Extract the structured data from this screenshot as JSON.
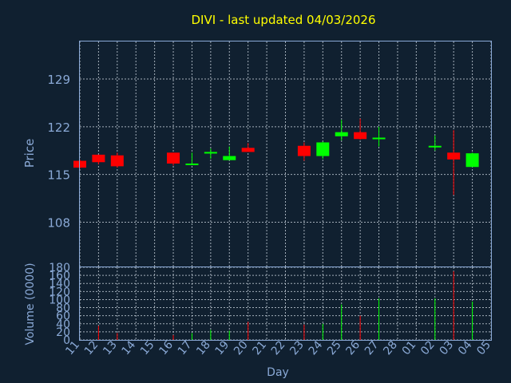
{
  "title": "DIVI - last updated 04/03/2026",
  "colors": {
    "background": "#102030",
    "up": "#00ff00",
    "down": "#ff0000",
    "title": "#ffff00",
    "axis": "#8aa9d6",
    "grid": "#c8d2dc"
  },
  "chart_data": {
    "type": "candlestick",
    "title": "DIVI - last updated 04/03/2026",
    "xlabel": "Day",
    "price_axis": {
      "label": "Price",
      "ticks": [
        108,
        115,
        122,
        129
      ],
      "range": [
        101.5,
        134.5
      ]
    },
    "volume_axis": {
      "label": "Volume (0000)",
      "ticks": [
        0,
        20,
        40,
        60,
        80,
        100,
        120,
        140,
        160,
        180
      ],
      "range": [
        0,
        180
      ]
    },
    "grid": true,
    "x_ticks": [
      "11",
      "12",
      "13",
      "14",
      "15",
      "16",
      "17",
      "18",
      "19",
      "20",
      "21",
      "22",
      "23",
      "24",
      "25",
      "26",
      "27",
      "28",
      "01",
      "02",
      "03",
      "04",
      "05"
    ],
    "candles": [
      {
        "day": "11",
        "open": 117.0,
        "high": 117.2,
        "low": 115.9,
        "close": 116.0,
        "volume": 0
      },
      {
        "day": "12",
        "open": 117.9,
        "high": 117.9,
        "low": 116.5,
        "close": 116.8,
        "volume": 35
      },
      {
        "day": "13",
        "open": 117.8,
        "high": 118.2,
        "low": 116.0,
        "close": 116.2,
        "volume": 17
      },
      {
        "day": "16",
        "open": 118.2,
        "high": 118.2,
        "low": 116.3,
        "close": 116.6,
        "volume": 12
      },
      {
        "day": "17",
        "open": 116.4,
        "high": 118.2,
        "low": 116.4,
        "close": 116.6,
        "volume": 17
      },
      {
        "day": "18",
        "open": 118.1,
        "high": 118.8,
        "low": 117.3,
        "close": 118.3,
        "volume": 25
      },
      {
        "day": "19",
        "open": 117.1,
        "high": 119.1,
        "low": 117.1,
        "close": 117.7,
        "volume": 23
      },
      {
        "day": "20",
        "open": 118.9,
        "high": 119.6,
        "low": 118.3,
        "close": 118.3,
        "volume": 45
      },
      {
        "day": "23",
        "open": 119.2,
        "high": 119.7,
        "low": 117.0,
        "close": 117.7,
        "volume": 38
      },
      {
        "day": "24",
        "open": 117.7,
        "high": 119.8,
        "low": 117.3,
        "close": 119.7,
        "volume": 40
      },
      {
        "day": "25",
        "open": 120.6,
        "high": 123.0,
        "low": 120.0,
        "close": 121.2,
        "volume": 88
      },
      {
        "day": "26",
        "open": 121.2,
        "high": 123.2,
        "low": 120.1,
        "close": 120.2,
        "volume": 60
      },
      {
        "day": "27",
        "open": 120.2,
        "high": 122.0,
        "low": 119.1,
        "close": 120.4,
        "volume": 103
      },
      {
        "day": "02",
        "open": 119.0,
        "high": 120.7,
        "low": 118.5,
        "close": 119.2,
        "volume": 103
      },
      {
        "day": "03",
        "open": 118.2,
        "high": 121.5,
        "low": 112.0,
        "close": 117.2,
        "volume": 170
      },
      {
        "day": "04",
        "open": 116.1,
        "high": 118.2,
        "low": 116.1,
        "close": 118.1,
        "volume": 95
      }
    ]
  }
}
